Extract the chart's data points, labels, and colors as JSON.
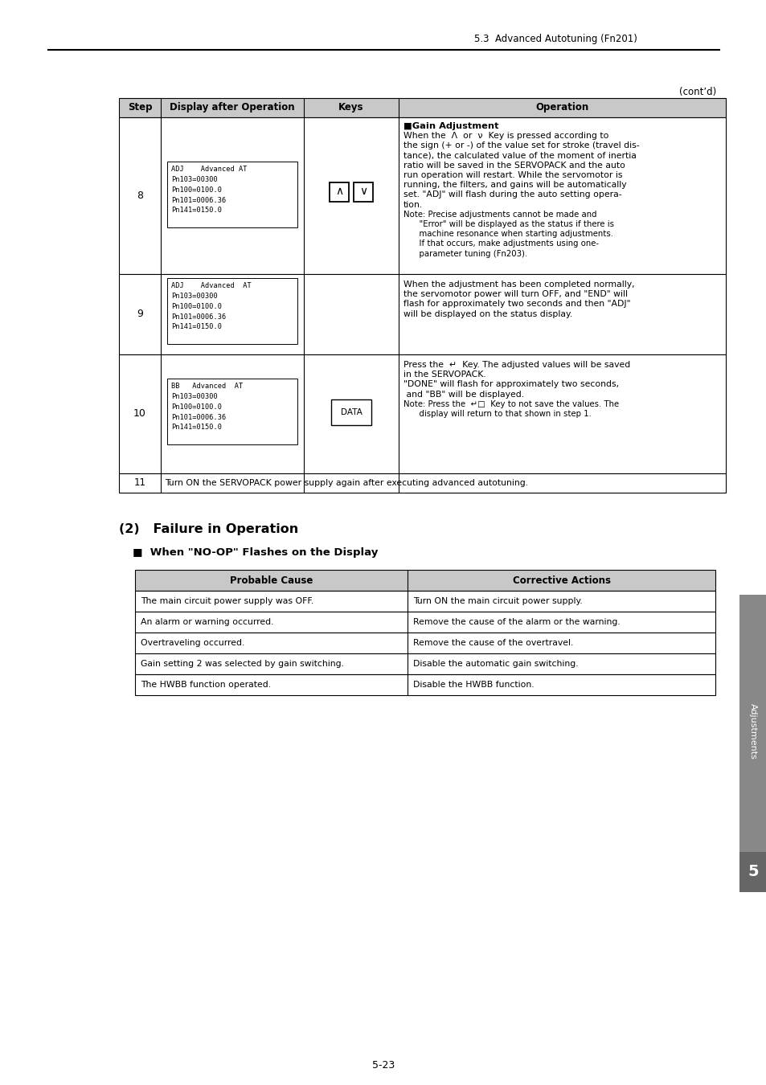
{
  "page_header": "5.3  Advanced Autotuning (Fn201)",
  "cont_d": "(cont’d)",
  "page_number": "5-23",
  "sidebar_text": "Adjustments",
  "sidebar_number": "5",
  "table1_headers": [
    "Step",
    "Display after Operation",
    "Keys",
    "Operation"
  ],
  "display8": "ADJ    Advanced AT\nPn103=00300\nPn100=0100.0\nPn101=0006.36\nPn141=0150.0",
  "display9": "ADJ    Advanced  AT\nPn103=00300\nPn100=0100.0\nPn101=0006.36\nPn141=0150.0",
  "display10": "BB   Advanced  AT\nPn103=00300\nPn100=0100.0\nPn101=0006.36\nPn141=0150.0",
  "op8_lines": [
    [
      "■Gain Adjustment",
      8.2,
      "bold"
    ],
    [
      "When the  Λ  or  ν  Key is pressed according to",
      7.8,
      "normal"
    ],
    [
      "the sign (+ or -) of the value set for stroke (travel dis-",
      7.8,
      "normal"
    ],
    [
      "tance), the calculated value of the moment of inertia",
      7.8,
      "normal"
    ],
    [
      "ratio will be saved in the SERVOPACK and the auto",
      7.8,
      "normal"
    ],
    [
      "run operation will restart. While the servomotor is",
      7.8,
      "normal"
    ],
    [
      "running, the filters, and gains will be automatically",
      7.8,
      "normal"
    ],
    [
      "set. \"ADJ\" will flash during the auto setting opera-",
      7.8,
      "normal"
    ],
    [
      "tion.",
      7.8,
      "normal"
    ],
    [
      "Note: Precise adjustments cannot be made and",
      7.3,
      "normal"
    ],
    [
      "      \"Error\" will be displayed as the status if there is",
      7.3,
      "normal"
    ],
    [
      "      machine resonance when starting adjustments.",
      7.3,
      "normal"
    ],
    [
      "      If that occurs, make adjustments using one-",
      7.3,
      "normal"
    ],
    [
      "      parameter tuning (Fn203).",
      7.3,
      "normal"
    ]
  ],
  "op9_lines": [
    [
      "When the adjustment has been completed normally,",
      7.8,
      "normal"
    ],
    [
      "the servomotor power will turn OFF, and \"END\" will",
      7.8,
      "normal"
    ],
    [
      "flash for approximately two seconds and then \"ADJ\"",
      7.8,
      "normal"
    ],
    [
      "will be displayed on the status display.",
      7.8,
      "normal"
    ]
  ],
  "op10_lines": [
    [
      "Press the  ↵  Key. The adjusted values will be saved",
      7.8,
      "normal"
    ],
    [
      "in the SERVOPACK.",
      7.8,
      "normal"
    ],
    [
      "\"DONE\" will flash for approximately two seconds,",
      7.8,
      "normal"
    ],
    [
      " and \"BB\" will be displayed.",
      7.8,
      "normal"
    ],
    [
      "Note: Press the  ↵□  Key to not save the values. The",
      7.3,
      "normal"
    ],
    [
      "      display will return to that shown in step 1.",
      7.3,
      "normal"
    ]
  ],
  "op11": "Turn ON the SERVOPACK power supply again after executing advanced autotuning.",
  "section2_title": "(2)   Failure in Operation",
  "section2_bullet": "■  When \"NO-OP\" Flashes on the Display",
  "table2_headers": [
    "Probable Cause",
    "Corrective Actions"
  ],
  "table2_rows": [
    [
      "The main circuit power supply was OFF.",
      "Turn ON the main circuit power supply."
    ],
    [
      "An alarm or warning occurred.",
      "Remove the cause of the alarm or the warning."
    ],
    [
      "Overtraveling occurred.",
      "Remove the cause of the overtravel."
    ],
    [
      "Gain setting 2 was selected by gain switching.",
      "Disable the automatic gain switching."
    ],
    [
      "The HWBB function operated.",
      "Disable the HWBB function."
    ]
  ],
  "header_bg": "#c8c8c8",
  "white": "#ffffff",
  "black": "#000000"
}
